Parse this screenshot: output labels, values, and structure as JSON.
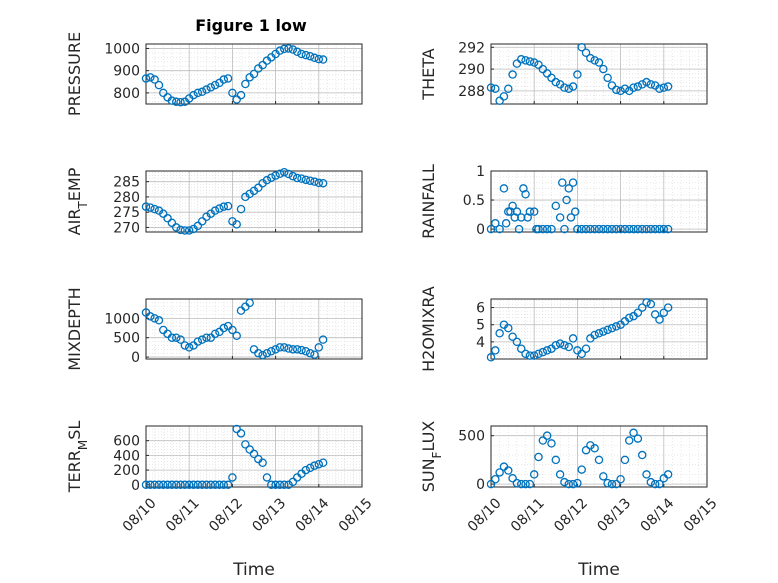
{
  "figure": {
    "title": "Figure 1 low",
    "xlabel": "Time",
    "x_ticks": [
      "08/10",
      "08/11",
      "08/12",
      "08/13",
      "08/14",
      "08/15"
    ],
    "marker_color": "#0072bd",
    "grid": true
  },
  "chart_data": [
    {
      "type": "scatter",
      "ylabel": "PRESSURE",
      "ylim": [
        750,
        1020
      ],
      "yticks": [
        {
          "v": 800,
          "label": "800"
        },
        {
          "v": 900,
          "label": "900"
        },
        {
          "v": 1000,
          "label": "1000"
        }
      ],
      "x": [
        0.0,
        0.1,
        0.2,
        0.3,
        0.4,
        0.5,
        0.6,
        0.7,
        0.8,
        0.9,
        1.0,
        1.1,
        1.2,
        1.3,
        1.4,
        1.5,
        1.6,
        1.7,
        1.8,
        1.9,
        2.0,
        2.1,
        2.2,
        2.3,
        2.4,
        2.5,
        2.6,
        2.7,
        2.8,
        2.9,
        3.0,
        3.1,
        3.2,
        3.3,
        3.4,
        3.5,
        3.6,
        3.7,
        3.8,
        3.9,
        4.0,
        4.1
      ],
      "y": [
        865,
        870,
        860,
        835,
        800,
        780,
        765,
        760,
        758,
        760,
        775,
        790,
        800,
        805,
        815,
        825,
        835,
        845,
        860,
        865,
        800,
        770,
        790,
        840,
        870,
        885,
        910,
        925,
        945,
        960,
        975,
        990,
        998,
        1000,
        995,
        985,
        975,
        970,
        965,
        958,
        952,
        950
      ]
    },
    {
      "type": "scatter",
      "ylabel": "THETA",
      "ylim": [
        286.8,
        292.3
      ],
      "yticks": [
        {
          "v": 288,
          "label": "288"
        },
        {
          "v": 290,
          "label": "290"
        },
        {
          "v": 292,
          "label": "292"
        }
      ],
      "x": [
        0.0,
        0.1,
        0.2,
        0.3,
        0.4,
        0.5,
        0.6,
        0.7,
        0.8,
        0.9,
        1.0,
        1.1,
        1.2,
        1.3,
        1.4,
        1.5,
        1.6,
        1.7,
        1.8,
        1.9,
        2.0,
        2.1,
        2.2,
        2.3,
        2.4,
        2.5,
        2.6,
        2.7,
        2.8,
        2.9,
        3.0,
        3.1,
        3.2,
        3.3,
        3.4,
        3.5,
        3.6,
        3.7,
        3.8,
        3.9,
        4.0,
        4.1
      ],
      "y": [
        288.3,
        288.2,
        287.1,
        287.5,
        288.2,
        289.5,
        290.5,
        290.9,
        290.8,
        290.7,
        290.6,
        290.4,
        290.0,
        289.6,
        289.2,
        288.8,
        288.6,
        288.3,
        288.2,
        288.4,
        289.5,
        292.0,
        291.5,
        291.0,
        290.8,
        290.6,
        290.0,
        289.2,
        288.5,
        288.1,
        288.0,
        288.2,
        288.0,
        288.3,
        288.4,
        288.6,
        288.8,
        288.6,
        288.5,
        288.2,
        288.3,
        288.4
      ]
    },
    {
      "type": "scatter",
      "ylabel": "AIR_TEMP",
      "ylim": [
        268.5,
        288.5
      ],
      "yticks": [
        {
          "v": 270,
          "label": "270"
        },
        {
          "v": 275,
          "label": "275"
        },
        {
          "v": 280,
          "label": "280"
        },
        {
          "v": 285,
          "label": "285"
        }
      ],
      "x": [
        0.0,
        0.1,
        0.2,
        0.3,
        0.4,
        0.5,
        0.6,
        0.7,
        0.8,
        0.9,
        1.0,
        1.1,
        1.2,
        1.3,
        1.4,
        1.5,
        1.6,
        1.7,
        1.8,
        1.9,
        2.0,
        2.1,
        2.2,
        2.3,
        2.4,
        2.5,
        2.6,
        2.7,
        2.8,
        2.9,
        3.0,
        3.1,
        3.2,
        3.3,
        3.4,
        3.5,
        3.6,
        3.7,
        3.8,
        3.9,
        4.0,
        4.1
      ],
      "y": [
        276.8,
        276.5,
        276.0,
        275.5,
        274.5,
        273.0,
        271.5,
        270.0,
        269.2,
        269.0,
        269.0,
        269.5,
        270.5,
        272.0,
        273.5,
        274.5,
        275.5,
        276.2,
        276.8,
        277.0,
        272.0,
        271.0,
        276.0,
        280.0,
        281.0,
        282.0,
        283.0,
        284.5,
        285.5,
        286.3,
        287.0,
        287.6,
        288.1,
        287.5,
        286.8,
        286.2,
        286.0,
        285.6,
        285.3,
        285.0,
        284.6,
        284.5
      ]
    },
    {
      "type": "scatter",
      "ylabel": "RAINFALL",
      "ylim": [
        -0.05,
        1.0
      ],
      "yticks": [
        {
          "v": 0,
          "label": "0"
        },
        {
          "v": 0.5,
          "label": "0.5"
        },
        {
          "v": 1,
          "label": "1"
        }
      ],
      "x": [
        0.0,
        0.1,
        0.2,
        0.3,
        0.35,
        0.4,
        0.45,
        0.5,
        0.55,
        0.6,
        0.65,
        0.7,
        0.75,
        0.8,
        0.85,
        0.9,
        1.0,
        1.05,
        1.1,
        1.2,
        1.3,
        1.4,
        1.5,
        1.6,
        1.65,
        1.7,
        1.75,
        1.8,
        1.85,
        1.9,
        1.95,
        2.0,
        2.1,
        2.2,
        2.3,
        2.4,
        2.5,
        2.6,
        2.7,
        2.8,
        2.9,
        3.0,
        3.1,
        3.2,
        3.3,
        3.4,
        3.5,
        3.6,
        3.7,
        3.8,
        3.9,
        4.0,
        4.1
      ],
      "y": [
        0.0,
        0.1,
        0.0,
        0.7,
        0.1,
        0.3,
        0.3,
        0.4,
        0.2,
        0.3,
        0.0,
        0.2,
        0.7,
        0.6,
        0.2,
        0.3,
        0.3,
        0.0,
        0.0,
        0.0,
        0.0,
        0.0,
        0.4,
        0.2,
        0.8,
        0.0,
        0.5,
        0.7,
        0.2,
        0.8,
        0.3,
        0.0,
        0.0,
        0.0,
        0.0,
        0.0,
        0.0,
        0.0,
        0.0,
        0.0,
        0.0,
        0.0,
        0.0,
        0.0,
        0.0,
        0.0,
        0.0,
        0.0,
        0.0,
        0.0,
        0.0,
        0.0,
        0.0
      ]
    },
    {
      "type": "scatter",
      "ylabel": "MIXDEPTH",
      "ylim": [
        -50,
        1500
      ],
      "yticks": [
        {
          "v": 0,
          "label": "0"
        },
        {
          "v": 500,
          "label": "500"
        },
        {
          "v": 1000,
          "label": "1000"
        }
      ],
      "x": [
        0.0,
        0.1,
        0.2,
        0.3,
        0.4,
        0.5,
        0.6,
        0.7,
        0.8,
        0.9,
        1.0,
        1.1,
        1.2,
        1.3,
        1.4,
        1.5,
        1.6,
        1.7,
        1.8,
        1.9,
        2.0,
        2.1,
        2.2,
        2.3,
        2.4,
        2.5,
        2.6,
        2.7,
        2.8,
        2.9,
        3.0,
        3.1,
        3.2,
        3.3,
        3.4,
        3.5,
        3.6,
        3.7,
        3.8,
        3.9,
        4.0,
        4.1
      ],
      "y": [
        1150,
        1050,
        1000,
        950,
        700,
        600,
        500,
        500,
        450,
        300,
        250,
        300,
        400,
        450,
        500,
        500,
        600,
        650,
        750,
        800,
        700,
        550,
        1200,
        1300,
        1400,
        200,
        100,
        50,
        100,
        150,
        200,
        250,
        250,
        220,
        200,
        200,
        180,
        150,
        100,
        60,
        250,
        450
      ]
    },
    {
      "type": "scatter",
      "ylabel": "H2OMIXRA",
      "ylim": [
        3.0,
        6.5
      ],
      "yticks": [
        {
          "v": 4,
          "label": "4"
        },
        {
          "v": 5,
          "label": "5"
        },
        {
          "v": 6,
          "label": "6"
        }
      ],
      "x": [
        0.0,
        0.1,
        0.2,
        0.3,
        0.4,
        0.5,
        0.6,
        0.7,
        0.8,
        0.9,
        1.0,
        1.1,
        1.2,
        1.3,
        1.4,
        1.5,
        1.6,
        1.7,
        1.8,
        1.9,
        2.0,
        2.1,
        2.2,
        2.3,
        2.4,
        2.5,
        2.6,
        2.7,
        2.8,
        2.9,
        3.0,
        3.1,
        3.2,
        3.3,
        3.4,
        3.5,
        3.6,
        3.7,
        3.8,
        3.9,
        4.0,
        4.1
      ],
      "y": [
        3.1,
        3.5,
        4.5,
        5.0,
        4.8,
        4.3,
        4.0,
        3.6,
        3.3,
        3.2,
        3.2,
        3.3,
        3.4,
        3.5,
        3.6,
        3.8,
        3.9,
        3.8,
        3.7,
        4.2,
        3.5,
        3.3,
        3.6,
        4.2,
        4.4,
        4.5,
        4.6,
        4.7,
        4.8,
        4.9,
        5.0,
        5.2,
        5.4,
        5.5,
        5.7,
        6.0,
        6.3,
        6.2,
        5.6,
        5.3,
        5.7,
        6.0
      ]
    },
    {
      "type": "scatter",
      "ylabel": "TERR_MSL",
      "ylim": [
        -30,
        800
      ],
      "yticks": [
        {
          "v": 0,
          "label": "0"
        },
        {
          "v": 200,
          "label": "200"
        },
        {
          "v": 400,
          "label": "400"
        },
        {
          "v": 600,
          "label": "600"
        }
      ],
      "x": [
        0.0,
        0.1,
        0.2,
        0.3,
        0.4,
        0.5,
        0.6,
        0.7,
        0.8,
        0.9,
        1.0,
        1.1,
        1.2,
        1.3,
        1.4,
        1.5,
        1.6,
        1.7,
        1.8,
        1.9,
        2.0,
        2.1,
        2.2,
        2.3,
        2.4,
        2.5,
        2.6,
        2.7,
        2.8,
        2.9,
        3.0,
        3.1,
        3.2,
        3.3,
        3.4,
        3.5,
        3.6,
        3.7,
        3.8,
        3.9,
        4.0,
        4.1
      ],
      "y": [
        0,
        0,
        0,
        0,
        0,
        0,
        0,
        0,
        0,
        0,
        0,
        0,
        0,
        0,
        0,
        0,
        0,
        0,
        0,
        0,
        100,
        760,
        700,
        550,
        480,
        420,
        350,
        300,
        100,
        0,
        0,
        0,
        0,
        0,
        40,
        100,
        150,
        200,
        230,
        260,
        280,
        300
      ]
    },
    {
      "type": "scatter",
      "ylabel": "SUN_FLUX",
      "ylim": [
        -30,
        600
      ],
      "yticks": [
        {
          "v": 0,
          "label": "0"
        },
        {
          "v": 500,
          "label": "500"
        }
      ],
      "x": [
        0.0,
        0.1,
        0.2,
        0.3,
        0.4,
        0.5,
        0.6,
        0.7,
        0.8,
        0.9,
        1.0,
        1.1,
        1.2,
        1.3,
        1.4,
        1.5,
        1.6,
        1.7,
        1.8,
        1.9,
        2.0,
        2.1,
        2.2,
        2.3,
        2.4,
        2.5,
        2.6,
        2.7,
        2.8,
        2.9,
        3.0,
        3.1,
        3.2,
        3.3,
        3.4,
        3.5,
        3.6,
        3.7,
        3.8,
        3.9,
        4.0,
        4.1
      ],
      "y": [
        0,
        50,
        120,
        180,
        140,
        60,
        10,
        0,
        0,
        0,
        100,
        280,
        450,
        500,
        420,
        250,
        100,
        20,
        0,
        0,
        10,
        150,
        350,
        400,
        370,
        250,
        80,
        10,
        0,
        0,
        50,
        250,
        450,
        530,
        470,
        300,
        100,
        20,
        0,
        0,
        60,
        100
      ]
    }
  ]
}
